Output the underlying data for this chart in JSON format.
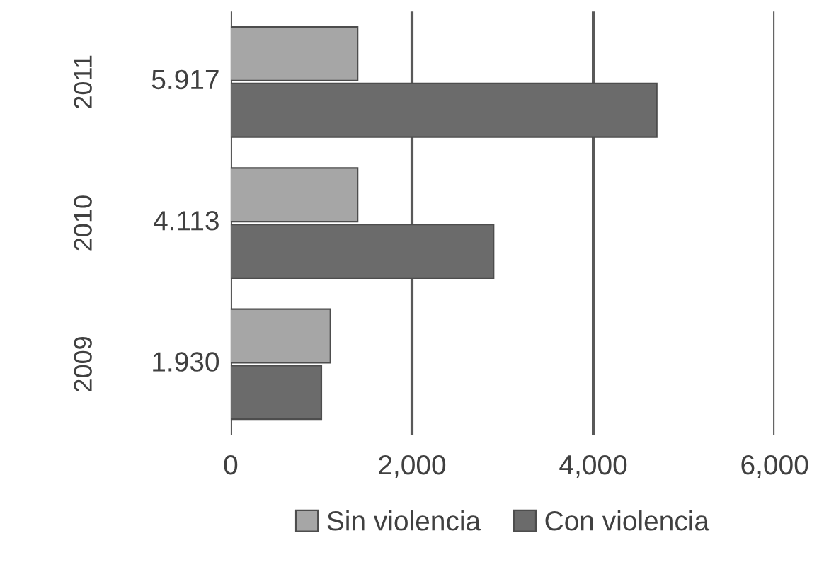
{
  "chart_data": {
    "type": "bar",
    "orientation": "horizontal",
    "categories": [
      "2011",
      "2010",
      "2009"
    ],
    "series": [
      {
        "name": "Sin violencia",
        "color": "#a6a6a6",
        "values": [
          1400,
          1400,
          1100
        ]
      },
      {
        "name": "Con violencia",
        "color": "#6b6b6b",
        "values": [
          4700,
          2900,
          1000
        ]
      }
    ],
    "annotations": [
      "5.917",
      "4.113",
      "1.930"
    ],
    "xlim": [
      0,
      6000
    ],
    "xticks": [
      {
        "value": 0,
        "label": "0"
      },
      {
        "value": 2000,
        "label": "2,000"
      },
      {
        "value": 4000,
        "label": "4,000"
      },
      {
        "value": 6000,
        "label": "6,000"
      }
    ],
    "grid": "x",
    "legend": "bottom"
  }
}
